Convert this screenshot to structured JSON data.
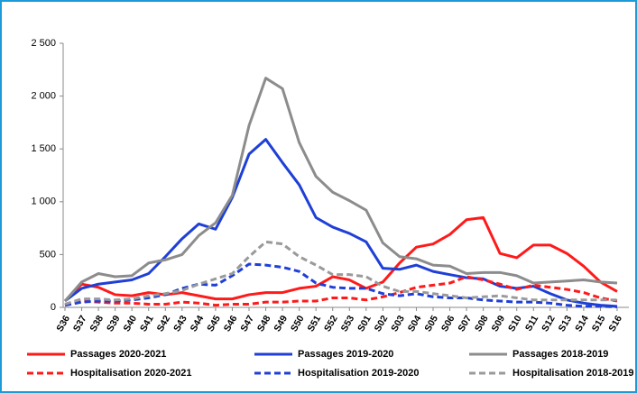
{
  "chart_data": {
    "type": "line",
    "categories": [
      "S36",
      "S37",
      "S38",
      "S39",
      "S40",
      "S41",
      "S42",
      "S43",
      "S44",
      "S45",
      "S46",
      "S47",
      "S48",
      "S49",
      "S50",
      "S51",
      "S52",
      "S53",
      "S01",
      "S02",
      "S03",
      "S04",
      "S05",
      "S06",
      "S07",
      "S08",
      "S09",
      "S10",
      "S11",
      "S12",
      "S13",
      "S14",
      "S15",
      "S16"
    ],
    "ylim": [
      0,
      2500
    ],
    "yticks": [
      0,
      500,
      {
        "value": 1000,
        "label": "1 000"
      },
      {
        "value": 1500,
        "label": "1 500"
      },
      {
        "value": 2000,
        "label": "2 000"
      },
      {
        "value": 2500,
        "label": "2 500"
      }
    ],
    "grid": false,
    "series": [
      {
        "name": "Passages 2020-2021",
        "color": "#ff1a1a",
        "dashed": false,
        "values": [
          60,
          220,
          190,
          120,
          110,
          140,
          120,
          140,
          110,
          80,
          80,
          120,
          140,
          140,
          180,
          200,
          290,
          260,
          180,
          240,
          420,
          570,
          600,
          690,
          830,
          850,
          510,
          470,
          590,
          590,
          510,
          390,
          240,
          150
        ]
      },
      {
        "name": "Passages 2019-2020",
        "color": "#1f3fd6",
        "dashed": false,
        "values": [
          60,
          180,
          220,
          240,
          260,
          320,
          480,
          650,
          790,
          740,
          1040,
          1450,
          1590,
          1370,
          1160,
          850,
          760,
          700,
          620,
          370,
          360,
          400,
          340,
          310,
          280,
          270,
          200,
          180,
          200,
          130,
          70,
          40,
          20,
          10
        ]
      },
      {
        "name": "Passages 2018-2019",
        "color": "#8c8c8c",
        "dashed": false,
        "values": [
          60,
          240,
          320,
          290,
          300,
          420,
          450,
          500,
          680,
          800,
          1060,
          1720,
          2170,
          2070,
          1560,
          1240,
          1090,
          1010,
          920,
          610,
          480,
          460,
          400,
          390,
          320,
          330,
          330,
          300,
          230,
          240,
          250,
          260,
          240,
          230
        ]
      },
      {
        "name": "Hospitalisation 2020-2021",
        "color": "#ff1a1a",
        "dashed": true,
        "values": [
          20,
          60,
          50,
          40,
          40,
          30,
          30,
          50,
          40,
          20,
          30,
          30,
          50,
          50,
          60,
          60,
          90,
          90,
          70,
          100,
          140,
          190,
          210,
          230,
          290,
          260,
          220,
          170,
          210,
          190,
          170,
          140,
          90,
          60
        ]
      },
      {
        "name": "Hospitalisation 2019-2020",
        "color": "#1f3fd6",
        "dashed": true,
        "values": [
          20,
          50,
          60,
          60,
          70,
          90,
          120,
          180,
          220,
          210,
          300,
          410,
          400,
          380,
          340,
          230,
          190,
          180,
          180,
          130,
          110,
          130,
          100,
          90,
          90,
          70,
          60,
          50,
          50,
          40,
          20,
          10,
          10,
          5
        ]
      },
      {
        "name": "Hospitalisation 2018-2019",
        "color": "#9a9a9a",
        "dashed": true,
        "values": [
          30,
          80,
          80,
          70,
          80,
          110,
          130,
          160,
          220,
          270,
          320,
          480,
          620,
          600,
          480,
          400,
          310,
          310,
          290,
          200,
          150,
          150,
          130,
          110,
          90,
          100,
          110,
          90,
          70,
          70,
          70,
          70,
          70,
          70
        ]
      }
    ]
  }
}
